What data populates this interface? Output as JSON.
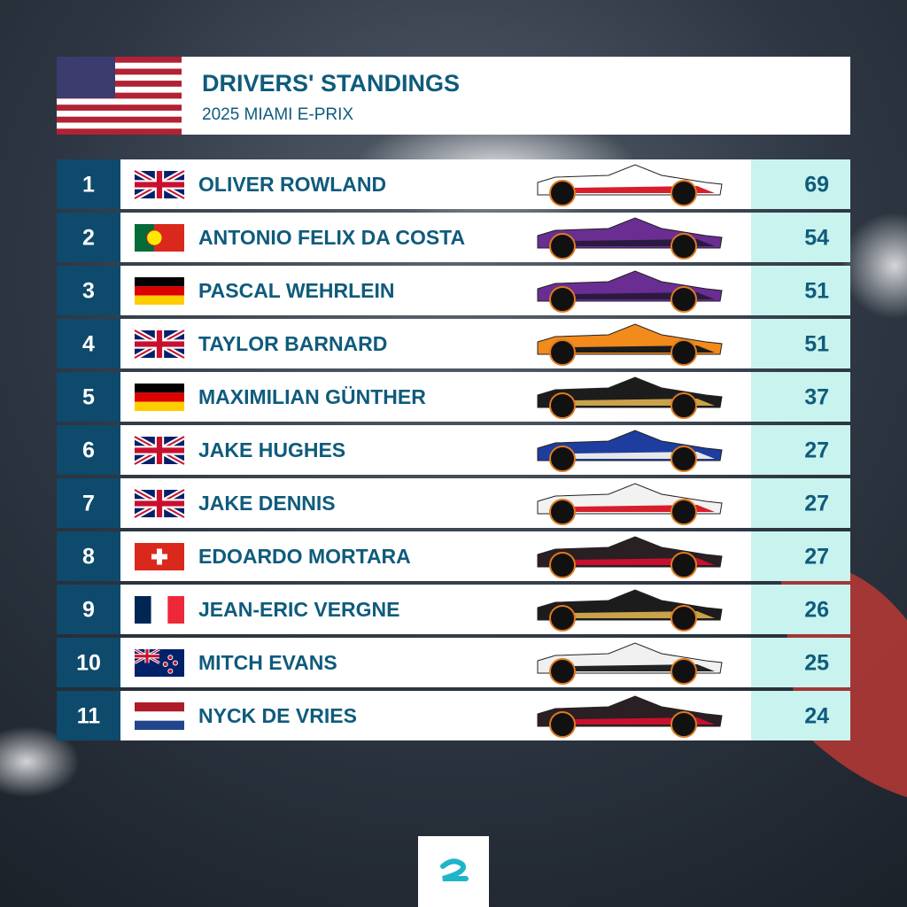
{
  "header": {
    "title": "DRIVERS' STANDINGS",
    "subtitle": "2025 MIAMI E-PRIX"
  },
  "table": {
    "rows": [
      [
        1,
        "OLIVER ROWLAND",
        69
      ],
      [
        2,
        "ANTONIO FELIX DA COSTA",
        54
      ],
      [
        3,
        "PASCAL WEHRLEIN",
        51
      ],
      [
        4,
        "TAYLOR BARNARD",
        51
      ],
      [
        5,
        "MAXIMILIAN GÜNTHER",
        37
      ],
      [
        6,
        "JAKE HUGHES",
        27
      ],
      [
        7,
        "JAKE DENNIS",
        27
      ],
      [
        8,
        "EDOARDO MORTARA",
        27
      ],
      [
        9,
        "JEAN-ERIC VERGNE",
        26
      ],
      [
        10,
        "MITCH EVANS",
        25
      ],
      [
        11,
        "NYCK DE VRIES",
        24
      ]
    ]
  }
}
